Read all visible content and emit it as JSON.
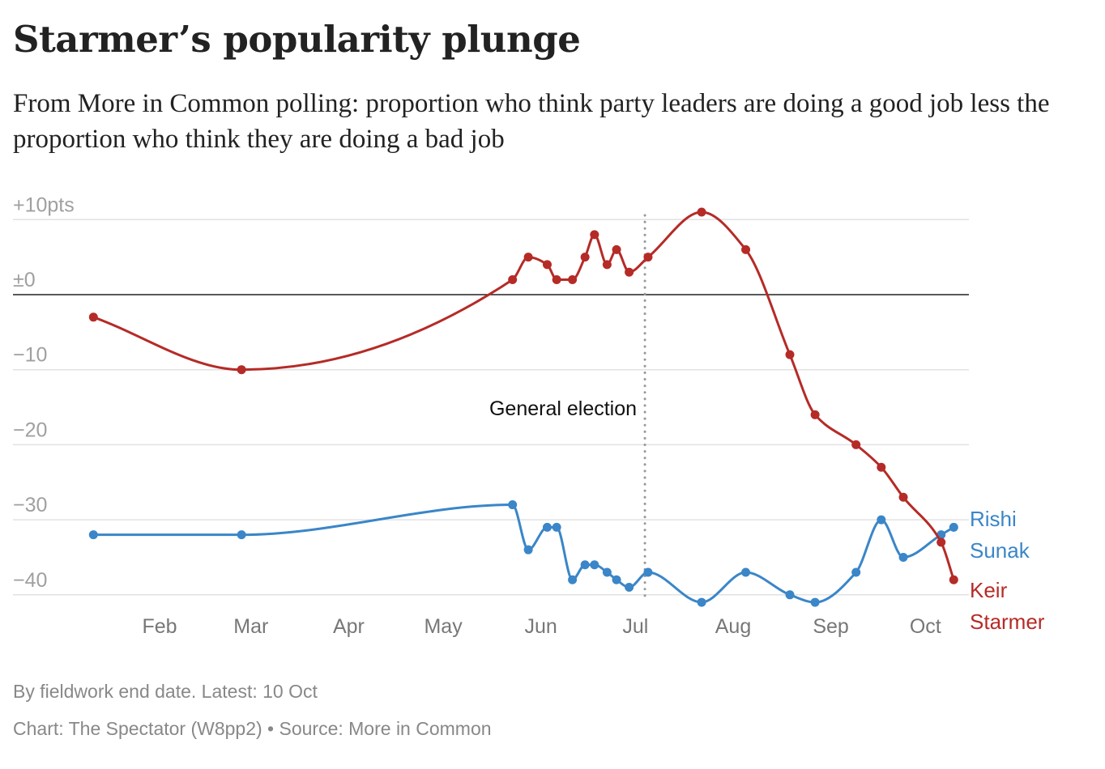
{
  "chart_data": {
    "type": "line",
    "title": "Starmer’s popularity plunge",
    "subtitle": "From More in Common polling: proportion who think party leaders are doing a good job less the proportion who think they are doing a bad job",
    "ylim": [
      -42,
      11
    ],
    "yticks": [
      {
        "value": 10,
        "label": "+10pts"
      },
      {
        "value": 0,
        "label": "±0"
      },
      {
        "value": -10,
        "label": "−10"
      },
      {
        "value": -20,
        "label": "−20"
      },
      {
        "value": -30,
        "label": "−30"
      },
      {
        "value": -40,
        "label": "−40"
      }
    ],
    "xticks": [
      {
        "date": "2024-02-01",
        "label": "Feb"
      },
      {
        "date": "2024-03-01",
        "label": "Mar"
      },
      {
        "date": "2024-04-01",
        "label": "Apr"
      },
      {
        "date": "2024-05-01",
        "label": "May"
      },
      {
        "date": "2024-06-01",
        "label": "Jun"
      },
      {
        "date": "2024-07-01",
        "label": "Jul"
      },
      {
        "date": "2024-08-01",
        "label": "Aug"
      },
      {
        "date": "2024-09-01",
        "label": "Sep"
      },
      {
        "date": "2024-10-01",
        "label": "Oct"
      }
    ],
    "grid": true,
    "annotation": {
      "date": "2024-07-04",
      "label": "General election"
    },
    "dates": [
      "2024-01-11",
      "2024-02-27",
      "2024-05-23",
      "2024-05-28",
      "2024-06-03",
      "2024-06-06",
      "2024-06-11",
      "2024-06-15",
      "2024-06-18",
      "2024-06-22",
      "2024-06-25",
      "2024-06-29",
      "2024-07-05",
      "2024-07-22",
      "2024-08-05",
      "2024-08-19",
      "2024-08-27",
      "2024-09-09",
      "2024-09-17",
      "2024-09-24",
      "2024-10-06",
      "2024-10-10"
    ],
    "series": [
      {
        "name": "Keir Starmer",
        "name_lines": [
          "Keir",
          "Starmer"
        ],
        "color": "#b52b27",
        "values": [
          -3,
          -10,
          2,
          5,
          4,
          2,
          2,
          5,
          8,
          4,
          6,
          3,
          5,
          11,
          6,
          -8,
          -16,
          -20,
          -23,
          -27,
          -33,
          -38
        ]
      },
      {
        "name": "Rishi Sunak",
        "name_lines": [
          "Rishi",
          "Sunak"
        ],
        "color": "#3a86c8",
        "values": [
          -32,
          -32,
          -28,
          -34,
          -31,
          -31,
          -38,
          -36,
          -36,
          -37,
          -38,
          -39,
          -37,
          -41,
          -37,
          -40,
          -41,
          -37,
          -30,
          -35,
          -32,
          -31
        ]
      }
    ]
  },
  "footer": {
    "note": "By fieldwork end date. Latest: 10 Oct",
    "credit": "Chart: The Spectator (W8pp2) • Source: More in Common"
  }
}
